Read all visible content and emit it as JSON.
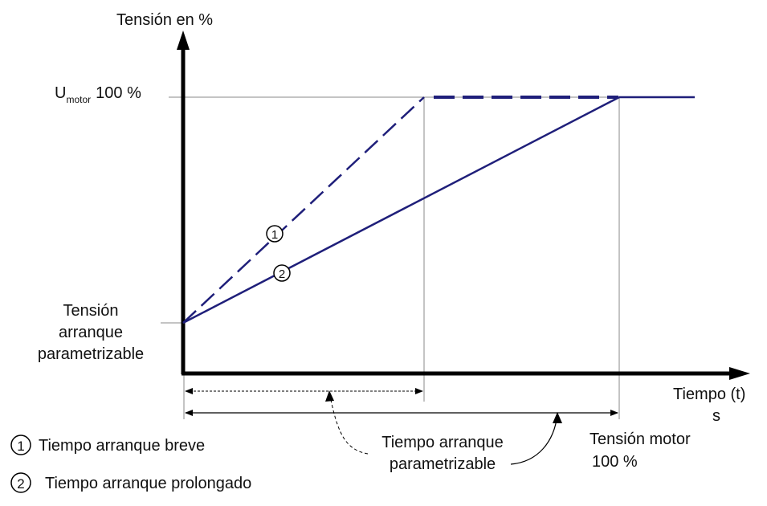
{
  "y_axis_title": "Tensión en %",
  "umotor": {
    "main": "U",
    "sub": "motor",
    "value": "100 %"
  },
  "start_voltage_label": [
    "Tensión",
    "arranque",
    "parametrizable"
  ],
  "x_axis_title": [
    "Tiempo (t)",
    "s"
  ],
  "ramp_time_label": [
    "Tiempo arranque",
    "parametrizable"
  ],
  "motor_voltage_label": [
    "Tensión motor",
    "100 %"
  ],
  "curve_markers": [
    "1",
    "2"
  ],
  "legend": [
    {
      "num": "1",
      "text": "Tiempo arranque breve"
    },
    {
      "num": "2",
      "text": "Tiempo arranque prolongado"
    }
  ],
  "colors": {
    "curve": "#1f1f7a",
    "axis": "#000000",
    "guide": "#888888"
  }
}
